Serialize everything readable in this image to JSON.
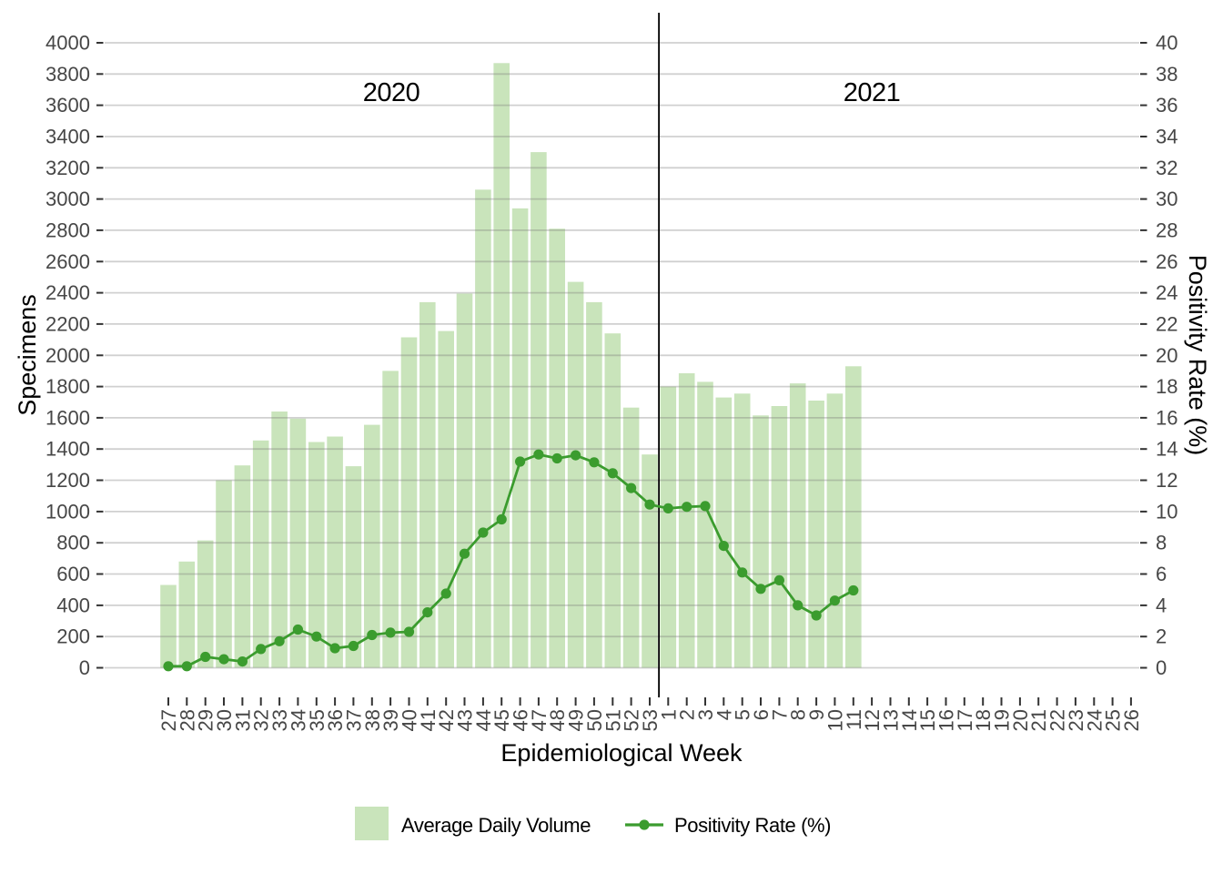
{
  "chart_data": {
    "type": "combo-bar-line",
    "x_axis": {
      "label": "Epidemiological Week",
      "groups": [
        {
          "year": "2020",
          "weeks": [
            27,
            28,
            29,
            30,
            31,
            32,
            33,
            34,
            35,
            36,
            37,
            38,
            39,
            40,
            41,
            42,
            43,
            44,
            45,
            46,
            47,
            48,
            49,
            50,
            51,
            52,
            53
          ]
        },
        {
          "year": "2021",
          "weeks": [
            1,
            2,
            3,
            4,
            5,
            6,
            7,
            8,
            9,
            10,
            11,
            12,
            13,
            14,
            15,
            16,
            17,
            18,
            19,
            20,
            21,
            22,
            23,
            24,
            25,
            26
          ]
        }
      ]
    },
    "left_axis": {
      "label": "Specimens",
      "min": 0,
      "max": 4000,
      "step": 200,
      "ticks": [
        0,
        200,
        400,
        600,
        800,
        1000,
        1200,
        1400,
        1600,
        1800,
        2000,
        2200,
        2400,
        2600,
        2800,
        3000,
        3200,
        3400,
        3600,
        3800,
        4000
      ]
    },
    "right_axis": {
      "label": "Positivity Rate (%)",
      "min": 0,
      "max": 40,
      "step": 2,
      "ticks": [
        0,
        2,
        4,
        6,
        8,
        10,
        12,
        14,
        16,
        18,
        20,
        22,
        24,
        26,
        28,
        30,
        32,
        34,
        36,
        38,
        40
      ]
    },
    "separator": {
      "position": "between 2020 week 53 and 2021 week 1"
    },
    "points": [
      {
        "year": "2020",
        "week": 27,
        "volume": 530,
        "rate": 0.1
      },
      {
        "year": "2020",
        "week": 28,
        "volume": 680,
        "rate": 0.1
      },
      {
        "year": "2020",
        "week": 29,
        "volume": 815,
        "rate": 0.7
      },
      {
        "year": "2020",
        "week": 30,
        "volume": 1200,
        "rate": 0.55
      },
      {
        "year": "2020",
        "week": 31,
        "volume": 1295,
        "rate": 0.4
      },
      {
        "year": "2020",
        "week": 32,
        "volume": 1455,
        "rate": 1.2
      },
      {
        "year": "2020",
        "week": 33,
        "volume": 1640,
        "rate": 1.7
      },
      {
        "year": "2020",
        "week": 34,
        "volume": 1595,
        "rate": 2.45
      },
      {
        "year": "2020",
        "week": 35,
        "volume": 1445,
        "rate": 2.0
      },
      {
        "year": "2020",
        "week": 36,
        "volume": 1480,
        "rate": 1.25
      },
      {
        "year": "2020",
        "week": 37,
        "volume": 1290,
        "rate": 1.4
      },
      {
        "year": "2020",
        "week": 38,
        "volume": 1555,
        "rate": 2.1
      },
      {
        "year": "2020",
        "week": 39,
        "volume": 1900,
        "rate": 2.25
      },
      {
        "year": "2020",
        "week": 40,
        "volume": 2115,
        "rate": 2.3
      },
      {
        "year": "2020",
        "week": 41,
        "volume": 2340,
        "rate": 3.55
      },
      {
        "year": "2020",
        "week": 42,
        "volume": 2155,
        "rate": 4.75
      },
      {
        "year": "2020",
        "week": 43,
        "volume": 2395,
        "rate": 7.3
      },
      {
        "year": "2020",
        "week": 44,
        "volume": 3060,
        "rate": 8.65
      },
      {
        "year": "2020",
        "week": 45,
        "volume": 3870,
        "rate": 9.5
      },
      {
        "year": "2020",
        "week": 46,
        "volume": 2940,
        "rate": 13.2
      },
      {
        "year": "2020",
        "week": 47,
        "volume": 3300,
        "rate": 13.65
      },
      {
        "year": "2020",
        "week": 48,
        "volume": 2810,
        "rate": 13.4
      },
      {
        "year": "2020",
        "week": 49,
        "volume": 2470,
        "rate": 13.6
      },
      {
        "year": "2020",
        "week": 50,
        "volume": 2340,
        "rate": 13.15
      },
      {
        "year": "2020",
        "week": 51,
        "volume": 2140,
        "rate": 12.45
      },
      {
        "year": "2020",
        "week": 52,
        "volume": 1665,
        "rate": 11.5
      },
      {
        "year": "2020",
        "week": 53,
        "volume": 1365,
        "rate": 10.45
      },
      {
        "year": "2021",
        "week": 1,
        "volume": 1800,
        "rate": 10.2
      },
      {
        "year": "2021",
        "week": 2,
        "volume": 1885,
        "rate": 10.3
      },
      {
        "year": "2021",
        "week": 3,
        "volume": 1830,
        "rate": 10.35
      },
      {
        "year": "2021",
        "week": 4,
        "volume": 1730,
        "rate": 7.8
      },
      {
        "year": "2021",
        "week": 5,
        "volume": 1755,
        "rate": 6.1
      },
      {
        "year": "2021",
        "week": 6,
        "volume": 1615,
        "rate": 5.05
      },
      {
        "year": "2021",
        "week": 7,
        "volume": 1675,
        "rate": 5.6
      },
      {
        "year": "2021",
        "week": 8,
        "volume": 1820,
        "rate": 4.0
      },
      {
        "year": "2021",
        "week": 9,
        "volume": 1710,
        "rate": 3.35
      },
      {
        "year": "2021",
        "week": 10,
        "volume": 1755,
        "rate": 4.3
      },
      {
        "year": "2021",
        "week": 11,
        "volume": 1930,
        "rate": 4.95
      }
    ],
    "legend": {
      "bar_item_label": "Average Daily Volume",
      "line_item_label": "Positivity Rate (%)"
    },
    "colors": {
      "bar_fill": "#c9e4bb",
      "line": "#3b9c2e",
      "gridline_base": "#777777",
      "separator": "#000000",
      "tick": "#333333",
      "tick_label": "#474747",
      "title": "#000000"
    },
    "layout_hints": {
      "grid": "horizontal only",
      "legend_position": "bottom",
      "x_tick_label_rotation": 90
    }
  }
}
